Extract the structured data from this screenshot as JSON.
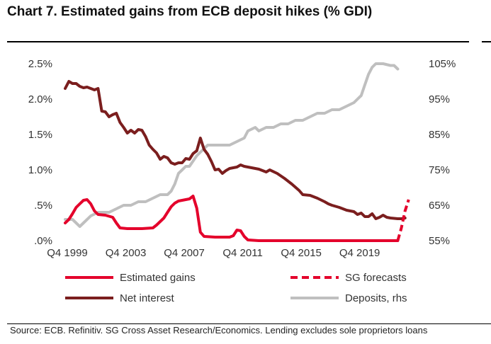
{
  "chart_data": {
    "type": "line",
    "title": "Chart 7. Estimated gains from ECB deposit hikes (% GDI)",
    "source": "Source: ECB. Refinitiv. SG Cross Asset Research/Economics. Lending excludes sole proprietors loans",
    "x_range": [
      1999.75,
      2023.5
    ],
    "x_ticks": [
      {
        "x": 1999.75,
        "label": "Q4 1999"
      },
      {
        "x": 2003.75,
        "label": "Q4 2003"
      },
      {
        "x": 2007.75,
        "label": "Q4 2007"
      },
      {
        "x": 2011.75,
        "label": "Q4 2011"
      },
      {
        "x": 2015.75,
        "label": "Q4 2015"
      },
      {
        "x": 2019.75,
        "label": "Q4 2019"
      }
    ],
    "y_left": {
      "range": [
        0,
        2.5
      ],
      "ticks": [
        0,
        0.5,
        1.0,
        1.5,
        2.0,
        2.5
      ],
      "tick_labels": [
        ".0%",
        ".5%",
        "1.0%",
        "1.5%",
        "2.0%",
        "2.5%"
      ]
    },
    "y_right": {
      "label": "rhs",
      "range": [
        55,
        105
      ],
      "ticks": [
        55,
        65,
        75,
        85,
        95,
        105
      ],
      "tick_labels": [
        "55%",
        "65%",
        "75%",
        "85%",
        "95%",
        "105%"
      ]
    },
    "series": [
      {
        "name": "Estimated gains",
        "axis": "left",
        "color": "#e4002b",
        "style": "solid",
        "points": [
          [
            1999.75,
            0.25
          ],
          [
            2000.0,
            0.3
          ],
          [
            2000.25,
            0.38
          ],
          [
            2000.5,
            0.47
          ],
          [
            2000.75,
            0.52
          ],
          [
            2001.0,
            0.57
          ],
          [
            2001.25,
            0.58
          ],
          [
            2001.5,
            0.52
          ],
          [
            2001.75,
            0.42
          ],
          [
            2002.0,
            0.37
          ],
          [
            2002.5,
            0.36
          ],
          [
            2003.0,
            0.33
          ],
          [
            2003.25,
            0.25
          ],
          [
            2003.5,
            0.18
          ],
          [
            2004.0,
            0.17
          ],
          [
            2005.0,
            0.17
          ],
          [
            2005.75,
            0.18
          ],
          [
            2006.0,
            0.22
          ],
          [
            2006.25,
            0.27
          ],
          [
            2006.5,
            0.32
          ],
          [
            2006.75,
            0.4
          ],
          [
            2007.0,
            0.48
          ],
          [
            2007.25,
            0.53
          ],
          [
            2007.5,
            0.56
          ],
          [
            2007.75,
            0.57
          ],
          [
            2008.0,
            0.58
          ],
          [
            2008.25,
            0.59
          ],
          [
            2008.5,
            0.63
          ],
          [
            2008.75,
            0.46
          ],
          [
            2009.0,
            0.12
          ],
          [
            2009.25,
            0.06
          ],
          [
            2010.0,
            0.05
          ],
          [
            2011.0,
            0.05
          ],
          [
            2011.25,
            0.07
          ],
          [
            2011.5,
            0.15
          ],
          [
            2011.75,
            0.14
          ],
          [
            2012.0,
            0.06
          ],
          [
            2012.25,
            0.01
          ],
          [
            2013.0,
            0.0
          ],
          [
            2022.5,
            0.0
          ]
        ]
      },
      {
        "name": "SG forecasts",
        "axis": "left",
        "color": "#e4002b",
        "style": "dashed",
        "points": [
          [
            2022.5,
            0.0
          ],
          [
            2022.75,
            0.18
          ],
          [
            2023.0,
            0.42
          ],
          [
            2023.25,
            0.58
          ]
        ]
      },
      {
        "name": "Net interest",
        "axis": "left",
        "color": "#7b1e1e",
        "style": "solid",
        "points": [
          [
            1999.75,
            2.15
          ],
          [
            2000.0,
            2.25
          ],
          [
            2000.25,
            2.22
          ],
          [
            2000.5,
            2.22
          ],
          [
            2000.75,
            2.18
          ],
          [
            2001.0,
            2.16
          ],
          [
            2001.25,
            2.17
          ],
          [
            2001.5,
            2.15
          ],
          [
            2001.75,
            2.13
          ],
          [
            2002.0,
            2.15
          ],
          [
            2002.25,
            1.83
          ],
          [
            2002.5,
            1.82
          ],
          [
            2002.75,
            1.75
          ],
          [
            2003.0,
            1.78
          ],
          [
            2003.25,
            1.8
          ],
          [
            2003.5,
            1.67
          ],
          [
            2003.75,
            1.6
          ],
          [
            2004.0,
            1.52
          ],
          [
            2004.25,
            1.56
          ],
          [
            2004.5,
            1.52
          ],
          [
            2004.75,
            1.57
          ],
          [
            2005.0,
            1.56
          ],
          [
            2005.25,
            1.47
          ],
          [
            2005.5,
            1.35
          ],
          [
            2005.75,
            1.29
          ],
          [
            2006.0,
            1.24
          ],
          [
            2006.25,
            1.15
          ],
          [
            2006.5,
            1.19
          ],
          [
            2006.75,
            1.17
          ],
          [
            2007.0,
            1.1
          ],
          [
            2007.25,
            1.08
          ],
          [
            2007.5,
            1.1
          ],
          [
            2007.75,
            1.1
          ],
          [
            2008.0,
            1.16
          ],
          [
            2008.25,
            1.15
          ],
          [
            2008.5,
            1.23
          ],
          [
            2008.75,
            1.27
          ],
          [
            2009.0,
            1.45
          ],
          [
            2009.25,
            1.29
          ],
          [
            2009.5,
            1.22
          ],
          [
            2009.75,
            1.12
          ],
          [
            2010.0,
            1.0
          ],
          [
            2010.25,
            1.01
          ],
          [
            2010.5,
            0.95
          ],
          [
            2010.75,
            0.99
          ],
          [
            2011.0,
            1.02
          ],
          [
            2011.5,
            1.04
          ],
          [
            2011.75,
            1.07
          ],
          [
            2012.0,
            1.05
          ],
          [
            2012.5,
            1.03
          ],
          [
            2013.0,
            1.01
          ],
          [
            2013.5,
            0.97
          ],
          [
            2013.75,
            1.0
          ],
          [
            2014.25,
            0.95
          ],
          [
            2014.75,
            0.88
          ],
          [
            2015.25,
            0.8
          ],
          [
            2015.75,
            0.71
          ],
          [
            2016.0,
            0.65
          ],
          [
            2016.5,
            0.64
          ],
          [
            2017.0,
            0.6
          ],
          [
            2017.5,
            0.55
          ],
          [
            2017.75,
            0.52
          ],
          [
            2018.0,
            0.5
          ],
          [
            2018.5,
            0.47
          ],
          [
            2019.0,
            0.43
          ],
          [
            2019.5,
            0.41
          ],
          [
            2019.75,
            0.37
          ],
          [
            2020.0,
            0.39
          ],
          [
            2020.25,
            0.34
          ],
          [
            2020.5,
            0.34
          ],
          [
            2020.75,
            0.38
          ],
          [
            2021.0,
            0.31
          ],
          [
            2021.25,
            0.33
          ],
          [
            2021.5,
            0.36
          ],
          [
            2021.75,
            0.33
          ],
          [
            2022.0,
            0.32
          ],
          [
            2022.5,
            0.31
          ],
          [
            2022.75,
            0.31
          ],
          [
            2023.0,
            0.32
          ]
        ]
      },
      {
        "name": "Deposits, rhs",
        "axis": "right",
        "color": "#bfbfbf",
        "style": "solid",
        "points": [
          [
            1999.75,
            61
          ],
          [
            2000.25,
            61
          ],
          [
            2000.5,
            60
          ],
          [
            2000.75,
            59
          ],
          [
            2001.0,
            60
          ],
          [
            2001.5,
            62
          ],
          [
            2002.0,
            63
          ],
          [
            2002.75,
            63
          ],
          [
            2003.25,
            64
          ],
          [
            2003.75,
            65
          ],
          [
            2004.25,
            65
          ],
          [
            2004.75,
            66
          ],
          [
            2005.25,
            66
          ],
          [
            2005.75,
            67
          ],
          [
            2006.25,
            68
          ],
          [
            2006.75,
            68
          ],
          [
            2007.0,
            69
          ],
          [
            2007.25,
            71
          ],
          [
            2007.5,
            74
          ],
          [
            2007.75,
            75
          ],
          [
            2008.0,
            76
          ],
          [
            2008.25,
            76
          ],
          [
            2008.75,
            79
          ],
          [
            2009.0,
            80
          ],
          [
            2009.25,
            81
          ],
          [
            2009.5,
            82
          ],
          [
            2010.0,
            82
          ],
          [
            2010.5,
            82
          ],
          [
            2011.0,
            82
          ],
          [
            2011.5,
            83
          ],
          [
            2012.0,
            84
          ],
          [
            2012.25,
            86
          ],
          [
            2012.75,
            87
          ],
          [
            2013.0,
            86
          ],
          [
            2013.5,
            87
          ],
          [
            2014.0,
            87
          ],
          [
            2014.5,
            88
          ],
          [
            2015.0,
            88
          ],
          [
            2015.5,
            89
          ],
          [
            2016.0,
            89
          ],
          [
            2016.5,
            90
          ],
          [
            2017.0,
            91
          ],
          [
            2017.5,
            91
          ],
          [
            2018.0,
            92
          ],
          [
            2018.5,
            92
          ],
          [
            2019.0,
            93
          ],
          [
            2019.5,
            94
          ],
          [
            2019.75,
            95
          ],
          [
            2020.0,
            96
          ],
          [
            2020.25,
            99
          ],
          [
            2020.5,
            102
          ],
          [
            2020.75,
            104
          ],
          [
            2021.0,
            105
          ],
          [
            2021.5,
            105
          ],
          [
            2022.0,
            104.5
          ],
          [
            2022.25,
            104.5
          ],
          [
            2022.5,
            103.5
          ]
        ]
      }
    ],
    "legend": {
      "placement": "bottom",
      "entries": [
        {
          "label": "Estimated gains",
          "color": "#e4002b",
          "style": "solid"
        },
        {
          "label": "SG forecasts",
          "color": "#e4002b",
          "style": "dashed"
        },
        {
          "label": "Net interest",
          "color": "#7b1e1e",
          "style": "solid"
        },
        {
          "label": "Deposits, rhs",
          "color": "#bfbfbf",
          "style": "solid"
        }
      ]
    },
    "grid": false
  }
}
